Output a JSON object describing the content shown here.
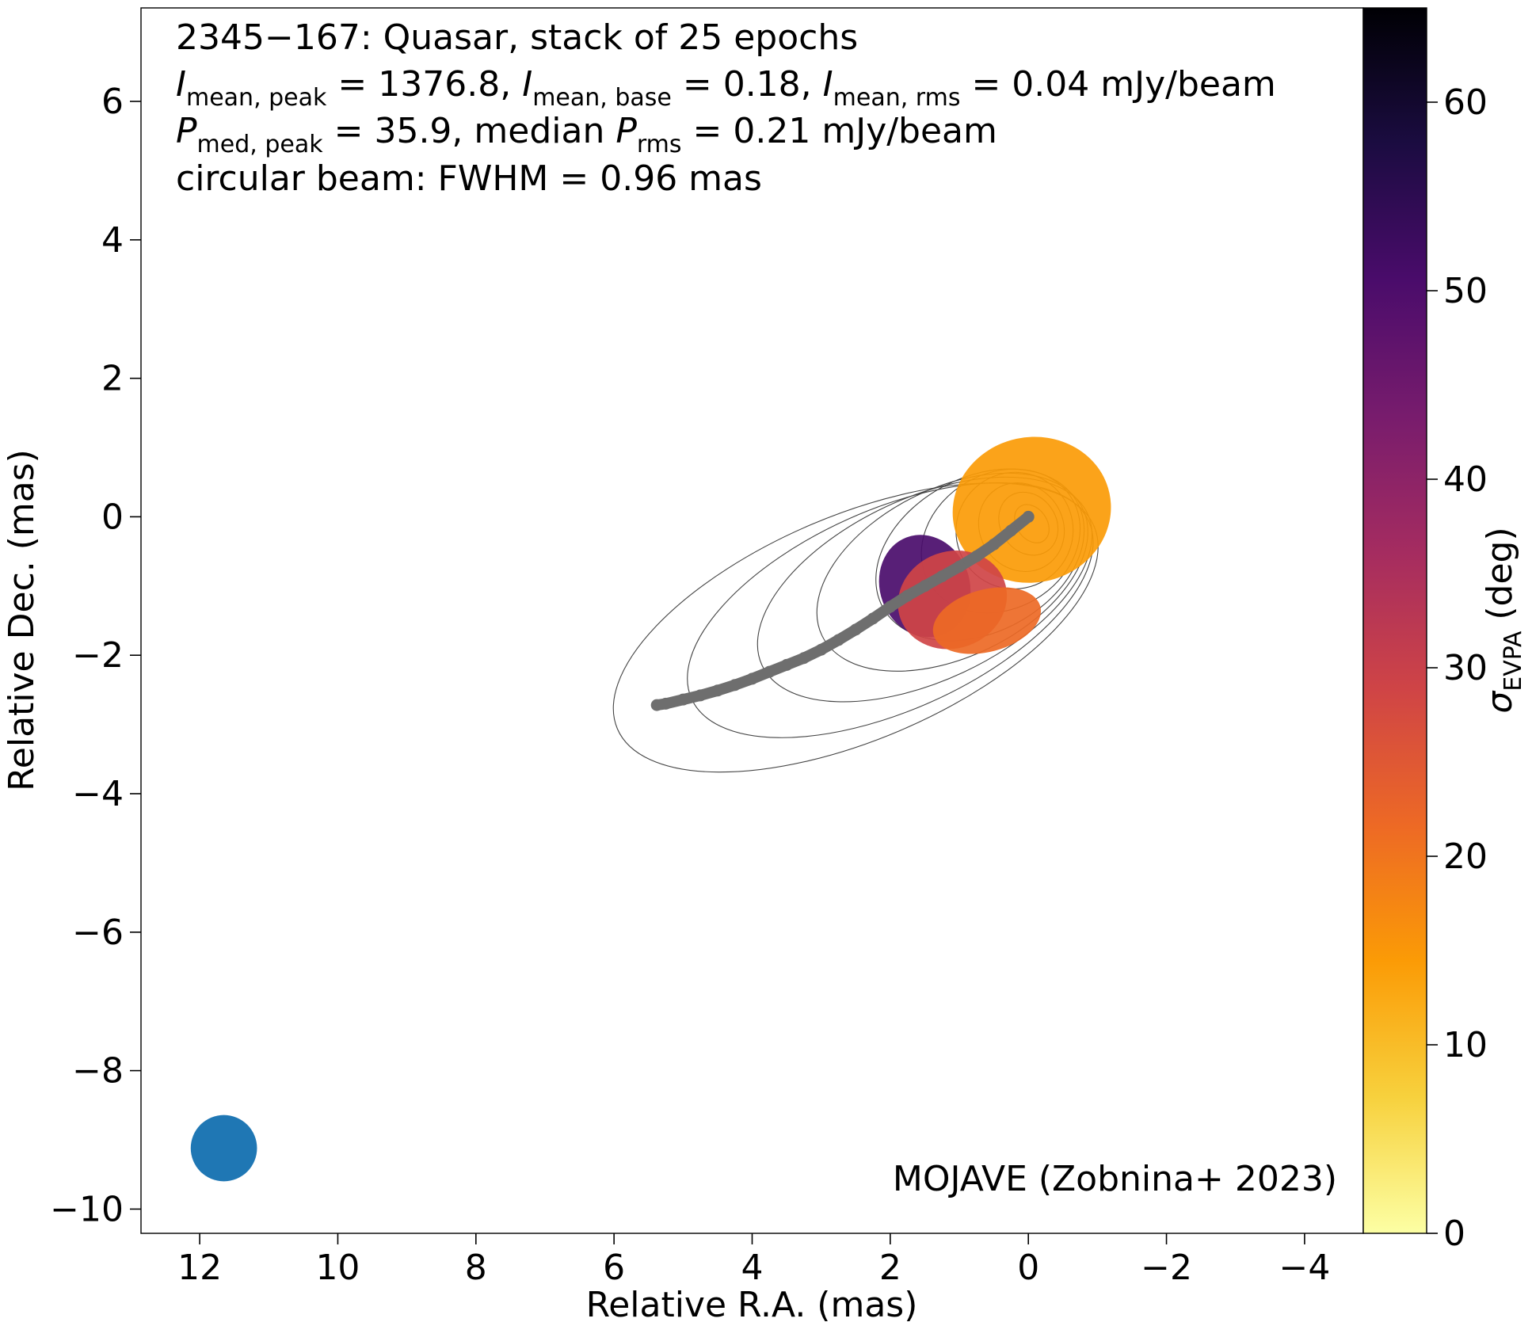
{
  "chart_data": {
    "type": "heatmap",
    "title_line1": "2345−167: Quasar, stack of 25 epochs",
    "intensity": {
      "peak": "1376.8",
      "base": "0.18",
      "rms": "0.04",
      "unit": "mJy/beam"
    },
    "polarization": {
      "peak": "35.9",
      "rms": "0.21",
      "unit": "mJy/beam"
    },
    "beam_line": "circular beam: FWHM = 0.96 mas",
    "credit": "MOJAVE (Zobnina+ 2023)",
    "xlabel": "Relative R.A. (mas)",
    "ylabel": "Relative Dec. (mas)",
    "colorbar_label": "(deg)",
    "xlim": [
      12.85,
      -4.85
    ],
    "ylim": [
      -10.35,
      7.35
    ],
    "xticks": [
      12,
      10,
      8,
      6,
      4,
      2,
      0,
      -2,
      -4
    ],
    "yticks": [
      6,
      4,
      2,
      0,
      -2,
      -4,
      -6,
      -8,
      -10
    ],
    "xtick_labels": [
      "12",
      "10",
      "8",
      "6",
      "4",
      "2",
      "0",
      "−2",
      "−4"
    ],
    "ytick_labels": [
      "6",
      "4",
      "2",
      "0",
      "−2",
      "−4",
      "−6",
      "−8",
      "−10"
    ],
    "colorbar": {
      "min": 0,
      "max": 65,
      "ticks": [
        0,
        10,
        20,
        30,
        40,
        50,
        60
      ],
      "tick_labels": [
        "0",
        "10",
        "20",
        "30",
        "40",
        "50",
        "60"
      ],
      "colormap": "inferno_r",
      "stops": [
        "#fcffa4",
        "#f7d13d",
        "#fb9b06",
        "#ed6925",
        "#cf4446",
        "#a52c60",
        "#781c6d",
        "#4a0c6b",
        "#1b0c41",
        "#000004"
      ]
    },
    "ridgeline": {
      "color": "#6e6e6e",
      "x": [
        0.0,
        0.25,
        0.5,
        0.75,
        1.0,
        1.25,
        1.5,
        1.75,
        2.0,
        2.25,
        2.5,
        2.75,
        3.0,
        3.25,
        3.5,
        3.75,
        4.0,
        4.25,
        4.5,
        4.75,
        5.0,
        5.25,
        5.38
      ],
      "y": [
        0.0,
        -0.2,
        -0.4,
        -0.57,
        -0.72,
        -0.86,
        -1.0,
        -1.14,
        -1.3,
        -1.47,
        -1.63,
        -1.78,
        -1.92,
        -2.04,
        -2.14,
        -2.24,
        -2.34,
        -2.43,
        -2.51,
        -2.58,
        -2.64,
        -2.7,
        -2.72
      ]
    },
    "beam": {
      "ra": 11.65,
      "dec": -9.12,
      "fwhm": 0.96,
      "color": "#1f77b4"
    },
    "evpa_std_regions": [
      {
        "ra": -0.05,
        "dec": 0.1,
        "rx": 1.15,
        "ry": 1.05,
        "rot": -12,
        "value": 12
      },
      {
        "ra": 1.5,
        "dec": -1.0,
        "rx": 0.65,
        "ry": 0.75,
        "rot": -20,
        "value": 50
      },
      {
        "ra": 1.1,
        "dec": -1.2,
        "rx": 0.8,
        "ry": 0.7,
        "rot": -20,
        "value": 32
      },
      {
        "ra": 0.6,
        "dec": -1.5,
        "rx": 0.8,
        "ry": 0.45,
        "rot": -15,
        "value": 20
      }
    ],
    "contours": [
      {
        "ra": -0.05,
        "dec": -0.1,
        "rx": 0.22,
        "ry": 0.3,
        "rot": -35
      },
      {
        "ra": 0.0,
        "dec": -0.1,
        "rx": 0.4,
        "ry": 0.48,
        "rot": -35
      },
      {
        "ra": 0.1,
        "dec": -0.15,
        "rx": 0.6,
        "ry": 0.66,
        "rot": -35
      },
      {
        "ra": 0.2,
        "dec": -0.2,
        "rx": 0.85,
        "ry": 0.84,
        "rot": -32
      },
      {
        "ra": 0.4,
        "dec": -0.35,
        "rx": 1.2,
        "ry": 0.98,
        "rot": -30
      },
      {
        "ra": 0.7,
        "dec": -0.55,
        "rx": 1.6,
        "ry": 1.12,
        "rot": -28
      },
      {
        "ra": 1.1,
        "dec": -0.8,
        "rx": 2.1,
        "ry": 1.22,
        "rot": -26
      },
      {
        "ra": 1.5,
        "dec": -1.05,
        "rx": 2.6,
        "ry": 1.32,
        "rot": -25
      },
      {
        "ra": 2.0,
        "dec": -1.35,
        "rx": 3.15,
        "ry": 1.45,
        "rot": -24
      },
      {
        "ra": 2.5,
        "dec": -1.6,
        "rx": 3.75,
        "ry": 1.62,
        "rot": -23
      }
    ]
  }
}
